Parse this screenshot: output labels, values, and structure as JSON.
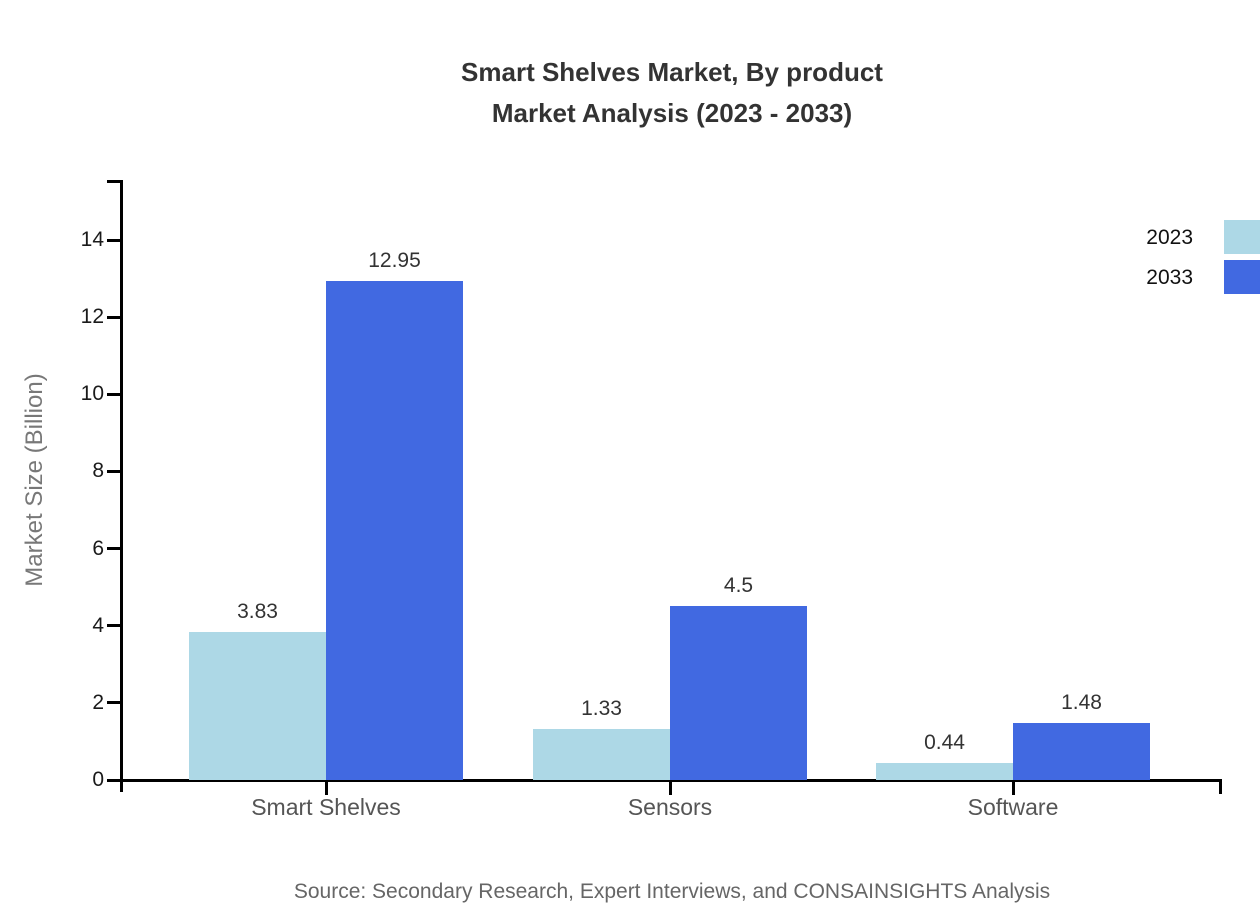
{
  "title": {
    "line1": "Smart Shelves Market, By product",
    "line2": "Market Analysis (2023 - 2033)"
  },
  "source_note": "Source: Secondary Research, Expert Interviews, and CONSAINSIGHTS Analysis",
  "chart_data": {
    "type": "bar",
    "title": "Smart Shelves Market, By product Market Analysis (2023 - 2033)",
    "xlabel": "",
    "ylabel": "Market Size (Billion)",
    "categories": [
      "Smart Shelves",
      "Sensors",
      "Software"
    ],
    "series": [
      {
        "name": "2023",
        "color": "#add8e6",
        "values": [
          3.83,
          1.33,
          0.44
        ],
        "labels": [
          "3.83",
          "1.33",
          "0.44"
        ]
      },
      {
        "name": "2033",
        "color": "#4169e1",
        "values": [
          12.95,
          4.5,
          1.48
        ],
        "labels": [
          "12.95",
          "4.5",
          "1.48"
        ]
      }
    ],
    "ylim": [
      0,
      15.5
    ],
    "yticks": [
      0,
      2,
      4,
      6,
      8,
      10,
      12,
      14
    ],
    "grid": false,
    "legend_position": "top-right",
    "legend_clipped_at_right_edge": true
  }
}
